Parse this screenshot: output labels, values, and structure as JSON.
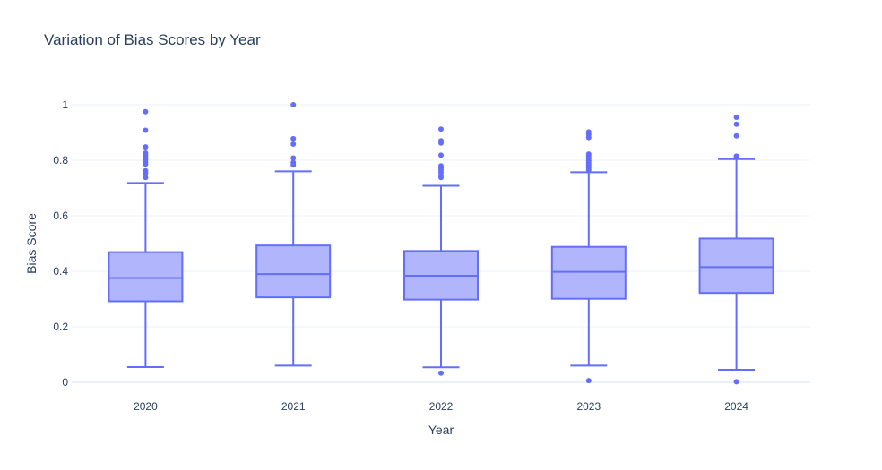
{
  "chart_data": {
    "type": "box",
    "title": "Variation of Bias Scores by Year",
    "xlabel": "Year",
    "ylabel": "Bias Score",
    "ylim": [
      -0.02,
      1.05
    ],
    "yticks": [
      0,
      0.2,
      0.4,
      0.6,
      0.8,
      1
    ],
    "ytick_labels": [
      "0",
      "0.2",
      "0.4",
      "0.6",
      "0.8",
      "1"
    ],
    "grid": true,
    "legend": "none",
    "colors": {
      "line": "#636efa",
      "fill": "#b1b6fc",
      "grid": "#ebf0f8",
      "zeroline": "#ebf0f8",
      "text": "#2a3f5f"
    },
    "categories": [
      "2020",
      "2021",
      "2022",
      "2023",
      "2024"
    ],
    "boxes": [
      {
        "year": "2020",
        "min": 0.055,
        "q1": 0.292,
        "median": 0.376,
        "q3": 0.469,
        "max": 0.718,
        "outliers": [
          0.975,
          0.908,
          0.848,
          0.826,
          0.818,
          0.81,
          0.802,
          0.793,
          0.786,
          0.762,
          0.754,
          0.738
        ]
      },
      {
        "year": "2021",
        "min": 0.06,
        "q1": 0.306,
        "median": 0.39,
        "q3": 0.493,
        "max": 0.76,
        "outliers": [
          1.0,
          0.878,
          0.858,
          0.808,
          0.792,
          0.783
        ]
      },
      {
        "year": "2022",
        "min": 0.054,
        "q1": 0.298,
        "median": 0.384,
        "q3": 0.473,
        "max": 0.708,
        "outliers": [
          0.912,
          0.87,
          0.862,
          0.818,
          0.78,
          0.772,
          0.765,
          0.756,
          0.745,
          0.738,
          0.033
        ]
      },
      {
        "year": "2023",
        "min": 0.06,
        "q1": 0.301,
        "median": 0.398,
        "q3": 0.488,
        "max": 0.757,
        "outliers": [
          0.902,
          0.893,
          0.882,
          0.822,
          0.815,
          0.806,
          0.798,
          0.79,
          0.782,
          0.773,
          0.765,
          0.006
        ]
      },
      {
        "year": "2024",
        "min": 0.045,
        "q1": 0.322,
        "median": 0.415,
        "q3": 0.518,
        "max": 0.804,
        "outliers": [
          0.955,
          0.93,
          0.888,
          0.815,
          0.811,
          0.002
        ]
      }
    ]
  }
}
